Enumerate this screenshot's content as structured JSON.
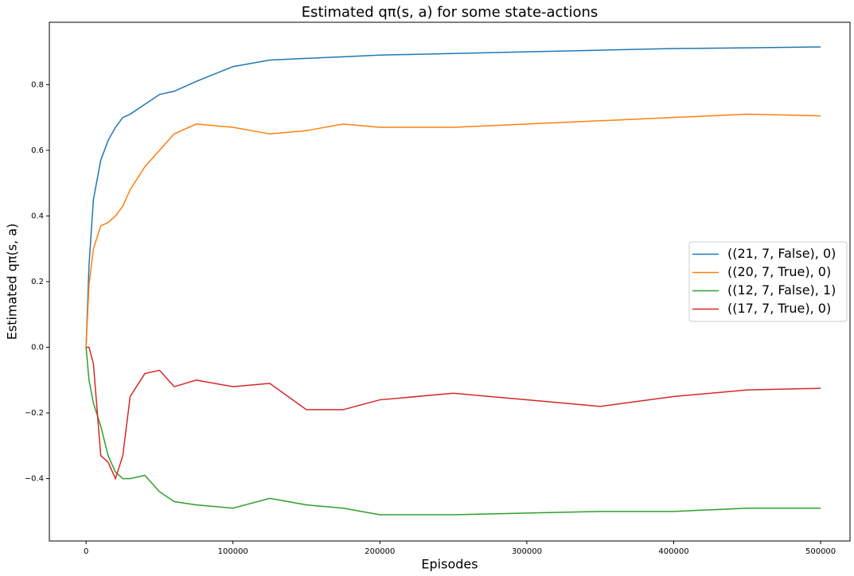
{
  "chart_data": {
    "type": "line",
    "title": "Estimated qπ(s, a) for some state-actions",
    "xlabel": "Episodes",
    "ylabel": "Estimated qπ(s, a)",
    "x": [
      0,
      2000,
      5000,
      10000,
      15000,
      20000,
      25000,
      30000,
      40000,
      50000,
      60000,
      75000,
      100000,
      125000,
      150000,
      175000,
      200000,
      250000,
      300000,
      350000,
      400000,
      450000,
      500000
    ],
    "series": [
      {
        "name": "((21, 7, False), 0)",
        "color": "#1f77b4",
        "values": [
          0,
          0.25,
          0.45,
          0.57,
          0.63,
          0.67,
          0.7,
          0.71,
          0.74,
          0.77,
          0.78,
          0.81,
          0.855,
          0.875,
          0.88,
          0.885,
          0.89,
          0.895,
          0.9,
          0.905,
          0.91,
          0.912,
          0.915
        ]
      },
      {
        "name": "((20, 7, True), 0)",
        "color": "#ff7f0e",
        "values": [
          0,
          0.19,
          0.3,
          0.37,
          0.38,
          0.4,
          0.43,
          0.48,
          0.55,
          0.6,
          0.65,
          0.68,
          0.67,
          0.65,
          0.66,
          0.68,
          0.67,
          0.67,
          0.68,
          0.69,
          0.7,
          0.71,
          0.705
        ]
      },
      {
        "name": "((12, 7, False), 1)",
        "color": "#2ca02c",
        "values": [
          0,
          -0.1,
          -0.17,
          -0.24,
          -0.33,
          -0.38,
          -0.4,
          -0.4,
          -0.39,
          -0.44,
          -0.47,
          -0.48,
          -0.49,
          -0.46,
          -0.48,
          -0.49,
          -0.51,
          -0.51,
          -0.505,
          -0.5,
          -0.5,
          -0.49,
          -0.49
        ]
      },
      {
        "name": "((17, 7, True), 0)",
        "color": "#d62728",
        "values": [
          0,
          0,
          -0.05,
          -0.33,
          -0.35,
          -0.4,
          -0.33,
          -0.15,
          -0.08,
          -0.07,
          -0.12,
          -0.1,
          -0.12,
          -0.11,
          -0.19,
          -0.19,
          -0.16,
          -0.14,
          -0.16,
          -0.18,
          -0.15,
          -0.13,
          -0.125
        ]
      }
    ],
    "xlim": [
      -25000,
      520000
    ],
    "ylim": [
      -0.59,
      0.99
    ],
    "xticks": [
      0,
      100000,
      200000,
      300000,
      400000,
      500000
    ],
    "yticks": [
      {
        "value": -0.4,
        "label": "−0.4"
      },
      {
        "value": -0.2,
        "label": "−0.2"
      },
      {
        "value": 0,
        "label": "0.0"
      },
      0.2,
      0.4,
      0.6,
      0.8
    ],
    "legend": "right"
  }
}
